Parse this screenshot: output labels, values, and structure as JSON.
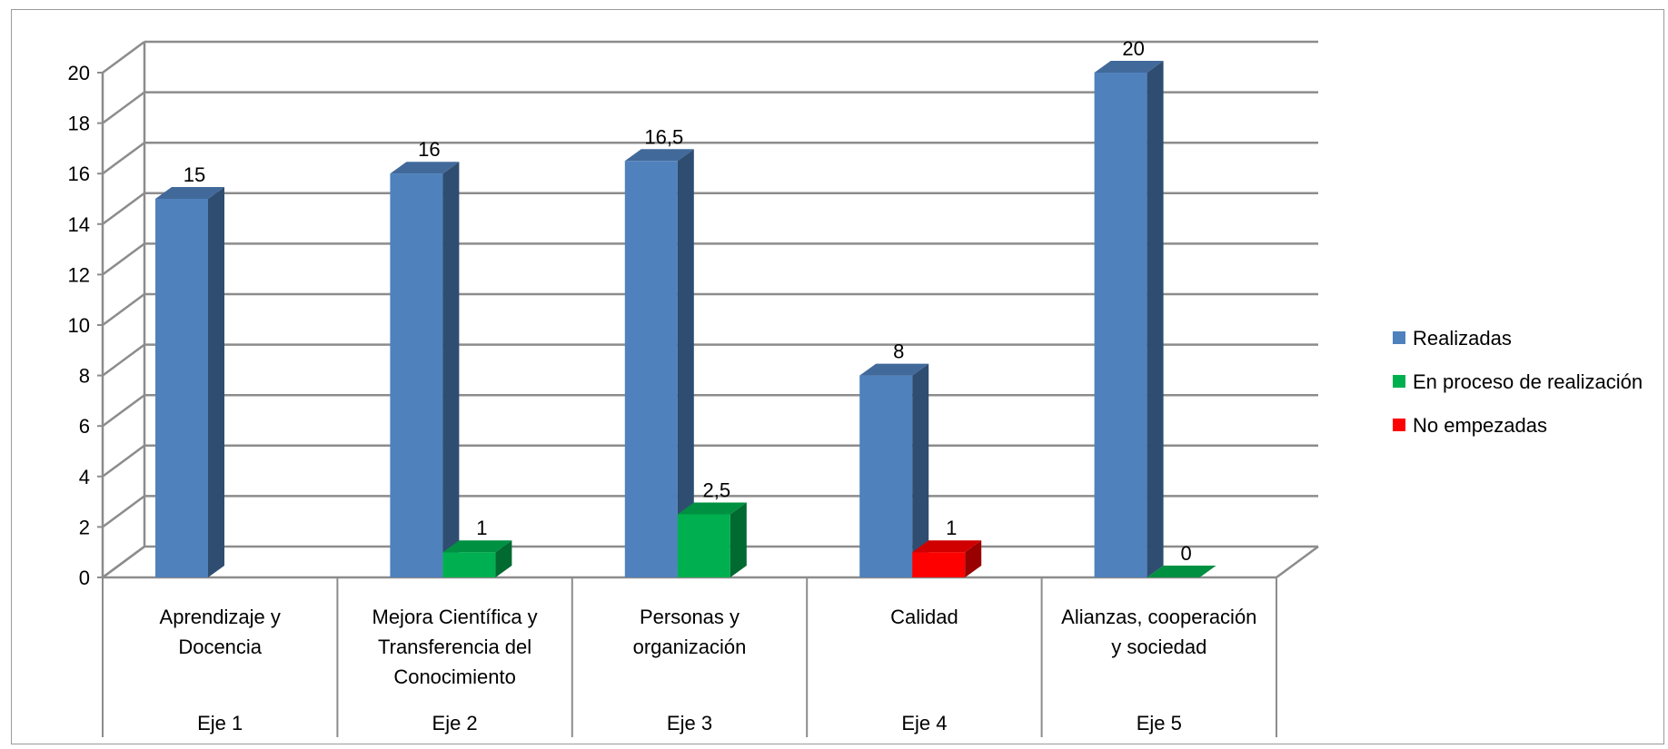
{
  "chart_data": {
    "type": "bar",
    "title": "",
    "xlabel": "",
    "ylabel": "",
    "ylim": [
      0,
      20
    ],
    "yticks": [
      0,
      2,
      4,
      6,
      8,
      10,
      12,
      14,
      16,
      18,
      20
    ],
    "grid": true,
    "legend_position": "right",
    "categories": [
      {
        "lines": [
          "Aprendizaje  y",
          "Docencia"
        ],
        "group": "Eje 1"
      },
      {
        "lines": [
          "Mejora Científica y",
          "Transferencia del",
          "Conocimiento"
        ],
        "group": "Eje 2"
      },
      {
        "lines": [
          "Personas y",
          "organización"
        ],
        "group": "Eje 3"
      },
      {
        "lines": [
          "Calidad"
        ],
        "group": "Eje 4"
      },
      {
        "lines": [
          "Alianzas, cooperación",
          "y sociedad"
        ],
        "group": "Eje 5"
      }
    ],
    "series": [
      {
        "name": "Realizadas",
        "color": "#4f81bd",
        "values": [
          15,
          16,
          16.5,
          8,
          20
        ],
        "labels": [
          "15",
          "16",
          "16,5",
          "8",
          "20"
        ]
      },
      {
        "name": "En proceso de realización",
        "color": "#00b050",
        "values": [
          null,
          1,
          2.5,
          null,
          0
        ],
        "labels": [
          null,
          "1",
          "2,5",
          null,
          "0"
        ]
      },
      {
        "name": "No empezadas",
        "color": "#ff0000",
        "values": [
          null,
          null,
          null,
          1,
          null
        ],
        "labels": [
          null,
          null,
          null,
          "1",
          null
        ]
      }
    ]
  }
}
